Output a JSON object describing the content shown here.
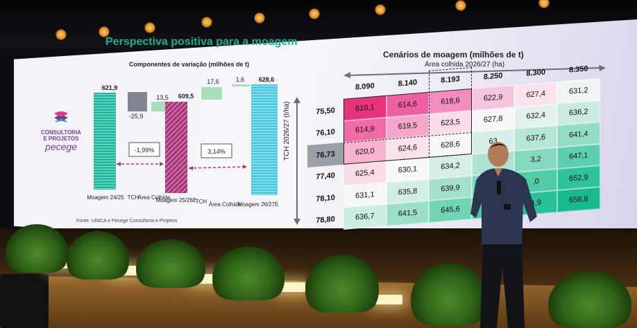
{
  "slide": {
    "title": "Perspectiva positiva para a moagem",
    "waterfall": {
      "subtitle": "Componentes de variação (milhões de t)",
      "bars": [
        {
          "label": "Moagem 24/25",
          "value_label": "621,9"
        },
        {
          "label": "TCH",
          "value_label": "-25,9"
        },
        {
          "label": "Área Colhida",
          "value_label": "13,5"
        },
        {
          "label": "Moagem 25/26E",
          "value_label": "609,5"
        },
        {
          "label": "TCH",
          "value_label": "17,6"
        },
        {
          "label": "Área Colhida",
          "value_label": "1,6"
        },
        {
          "label": "Moagem 26/27E",
          "value_label": "628,6"
        }
      ],
      "change_labels": [
        "-1,99%",
        "3,14%"
      ],
      "source": "Fonte: UNICA e Pecege Consultoria e Projetos"
    },
    "logo": {
      "line1": "CONSULTORIA",
      "line2": "E PROJETOS",
      "line3": "pecege"
    },
    "matrix": {
      "title": "Cenários de moagem (milhões de t)",
      "col_axis_label": "Área colhida 2026/27 (ha)",
      "row_axis_label": "TCH 2026/27 (t/ha)",
      "columns": [
        "8.090",
        "8.140",
        "8.193",
        "8.250",
        "8.300",
        "8.350"
      ],
      "rows": [
        {
          "tch": "75,50",
          "values": [
            "610,1",
            "614,6",
            "618,6",
            "622,9",
            "627,4",
            "631,2"
          ]
        },
        {
          "tch": "76,10",
          "values": [
            "614,9",
            "619,5",
            "623,5",
            "627,8",
            "632,4",
            "636,2"
          ]
        },
        {
          "tch": "76,73",
          "values": [
            "620,0",
            "624,6",
            "628,6",
            "63",
            "637,6",
            "641,4"
          ]
        },
        {
          "tch": "77,40",
          "values": [
            "625,4",
            "630,1",
            "634,2",
            "",
            "3,2",
            "647,1"
          ]
        },
        {
          "tch": "78,10",
          "values": [
            "631,1",
            "635,8",
            "639,9",
            "",
            ",0",
            "652,9"
          ]
        },
        {
          "tch": "78,80",
          "values": [
            "636,7",
            "641,5",
            "645,6",
            "65",
            "4,9",
            "658,8"
          ]
        }
      ],
      "colors": [
        [
          "#e6337a",
          "#ec5fa0",
          "#f28cbd",
          "#f7c4dd",
          "#fbe3ee",
          "#eef6f4"
        ],
        [
          "#f06aa6",
          "#f6a6c8",
          "#fbdcea",
          "#f7f7f9",
          "#e4f2ef",
          "#c9ebe1"
        ],
        [
          "#f7b2cf",
          "#fbe1ec",
          "#f6f7f9",
          "#d8efe8",
          "#b6e6d6",
          "#95dcc7"
        ],
        [
          "#fbdce9",
          "#f7f8f9",
          "#d6eee7",
          "#aee3d2",
          "#86d9c1",
          "#5dcfb0"
        ],
        [
          "#f4f6f8",
          "#d1ede6",
          "#a3e0cd",
          "#79d6bb",
          "#4fcba8",
          "#2fc39c"
        ],
        [
          "#cdece4",
          "#9cdfca",
          "#70d4b5",
          "#47c9a2",
          "#2bc197",
          "#18ba8c"
        ]
      ]
    }
  },
  "colors": {
    "title_green": "#1bb08a",
    "teal_bar": "#1fb8a0",
    "magenta_bar": "#a8347a",
    "gray_bar": "#7f8690",
    "light_green_bar": "#a9dfb8",
    "cyan_bar": "#46c8e0",
    "logo_purple": "#6b3fa0"
  }
}
